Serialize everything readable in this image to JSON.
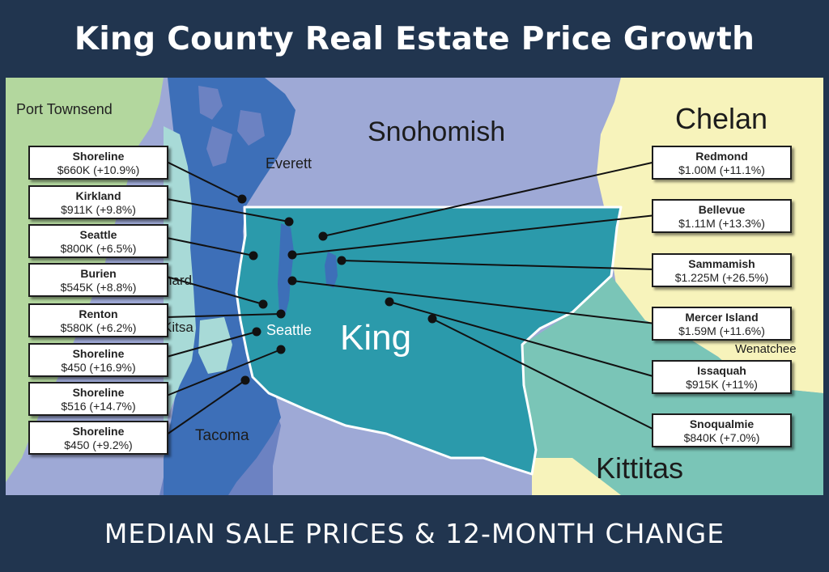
{
  "title": "King County Real Estate Price Growth",
  "subtitle": "MEDIAN SALE PRICES & 12-MONTH CHANGE",
  "colors": {
    "frame": "#21354f",
    "king": "#2b9aab",
    "snohomish": "#9ea9d6",
    "chelan": "#f7f3bb",
    "kittitas": "#7ac5b7",
    "pierce": "#6c82c2",
    "water": "#3d6fb8",
    "kitsap_tint": "#a8dad7",
    "west_land": "#b3d79e"
  },
  "labels": {
    "port_townsend": "Port Townsend",
    "snohomish": "Snohomish",
    "chelan": "Chelan",
    "everett": "Everett",
    "king": "King",
    "seattle": "Seattle",
    "wenatchee": "Wenatchee",
    "tacoma": "Tacoma",
    "kittitas": "Kittitas",
    "kitsap_partial": "Kitsa",
    "bremerton_partial": "nard"
  },
  "cities_left": [
    {
      "name": "Shoreline",
      "value": "$660K (+10.9%)"
    },
    {
      "name": "Kirkland",
      "value": "$911K (+9.8%)"
    },
    {
      "name": "Seattle",
      "value": "$800K (+6.5%)"
    },
    {
      "name": "Burien",
      "value": "$545K (+8.8%)"
    },
    {
      "name": "Renton",
      "value": "$580K (+6.2%)"
    },
    {
      "name": "Shoreline",
      "value": "$450 (+16.9%)"
    },
    {
      "name": "Shoreline",
      "value": "$516 (+14.7%)"
    },
    {
      "name": "Shoreline",
      "value": "$450 (+9.2%)"
    }
  ],
  "cities_right": [
    {
      "name": "Redmond",
      "value": "$1.00M (+11.1%)"
    },
    {
      "name": "Bellevue",
      "value": "$1.11M (+13.3%)"
    },
    {
      "name": "Sammamish",
      "value": "$1.225M (+26.5%)"
    },
    {
      "name": "Mercer Island",
      "value": "$1.59M (+11.6%)"
    },
    {
      "name": "Issaquah",
      "value": "$915K (+11%)"
    },
    {
      "name": "Snoqualmie",
      "value": "$840K (+7.0%)"
    }
  ]
}
